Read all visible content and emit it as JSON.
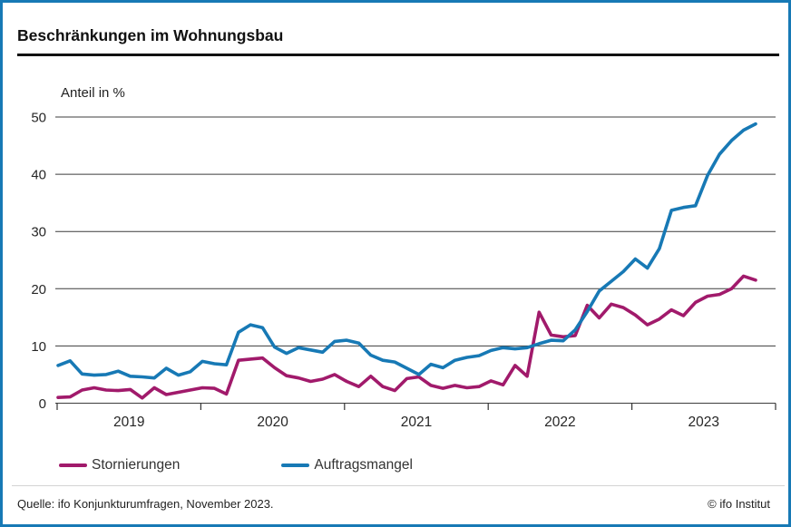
{
  "header": {
    "title": "Beschränkungen im Wohnungsbau"
  },
  "chart_data": {
    "type": "line",
    "title": "Beschränkungen im Wohnungsbau",
    "ylabel": "Anteil in %",
    "xlabel": "",
    "x_start": "2019-01",
    "x_end": "2023-11",
    "x_step": "month",
    "x_ticks": [
      "2019",
      "2020",
      "2021",
      "2022",
      "2023"
    ],
    "y_ticks": [
      0,
      10,
      20,
      30,
      40,
      50
    ],
    "ylim": [
      0,
      50
    ],
    "grid": true,
    "legend_position": "bottom",
    "series": [
      {
        "name": "Stornierungen",
        "color": "#a11a6b",
        "values": [
          1.0,
          1.1,
          2.3,
          2.7,
          2.3,
          2.2,
          2.4,
          0.9,
          2.7,
          1.5,
          1.9,
          2.3,
          2.7,
          2.6,
          1.6,
          7.5,
          7.7,
          7.9,
          6.2,
          4.8,
          4.4,
          3.8,
          4.2,
          5.0,
          3.8,
          2.9,
          4.7,
          2.9,
          2.2,
          4.3,
          4.6,
          3.1,
          2.6,
          3.1,
          2.7,
          2.9,
          3.9,
          3.2,
          6.6,
          4.7,
          15.9,
          11.9,
          11.6,
          11.8,
          17.1,
          14.9,
          17.3,
          16.7,
          15.4,
          13.7,
          14.7,
          16.3,
          15.3,
          17.6,
          18.7,
          19.0,
          20.0,
          22.2,
          21.5
        ]
      },
      {
        "name": "Auftragsmangel",
        "color": "#1779b5",
        "values": [
          6.6,
          7.4,
          5.1,
          4.9,
          5.0,
          5.6,
          4.7,
          4.6,
          4.4,
          6.1,
          4.9,
          5.5,
          7.3,
          6.9,
          6.7,
          12.4,
          13.7,
          13.2,
          9.8,
          8.7,
          9.7,
          9.3,
          8.9,
          10.8,
          11.0,
          10.5,
          8.4,
          7.5,
          7.2,
          6.1,
          5.0,
          6.8,
          6.2,
          7.5,
          8.0,
          8.3,
          9.2,
          9.7,
          9.5,
          9.7,
          10.4,
          11.0,
          10.9,
          12.8,
          16.0,
          19.6,
          21.3,
          23.0,
          25.2,
          23.6,
          27.0,
          33.7,
          34.2,
          34.5,
          39.8,
          43.5,
          45.9,
          47.7,
          48.8
        ]
      }
    ]
  },
  "footer": {
    "source": "Quelle: ifo Konjunkturumfragen, November 2023.",
    "copyright": "© ifo Institut"
  },
  "style": {
    "accent_blue": "#1779b5",
    "magenta": "#a11a6b",
    "grid_color": "#3c3c3c"
  }
}
